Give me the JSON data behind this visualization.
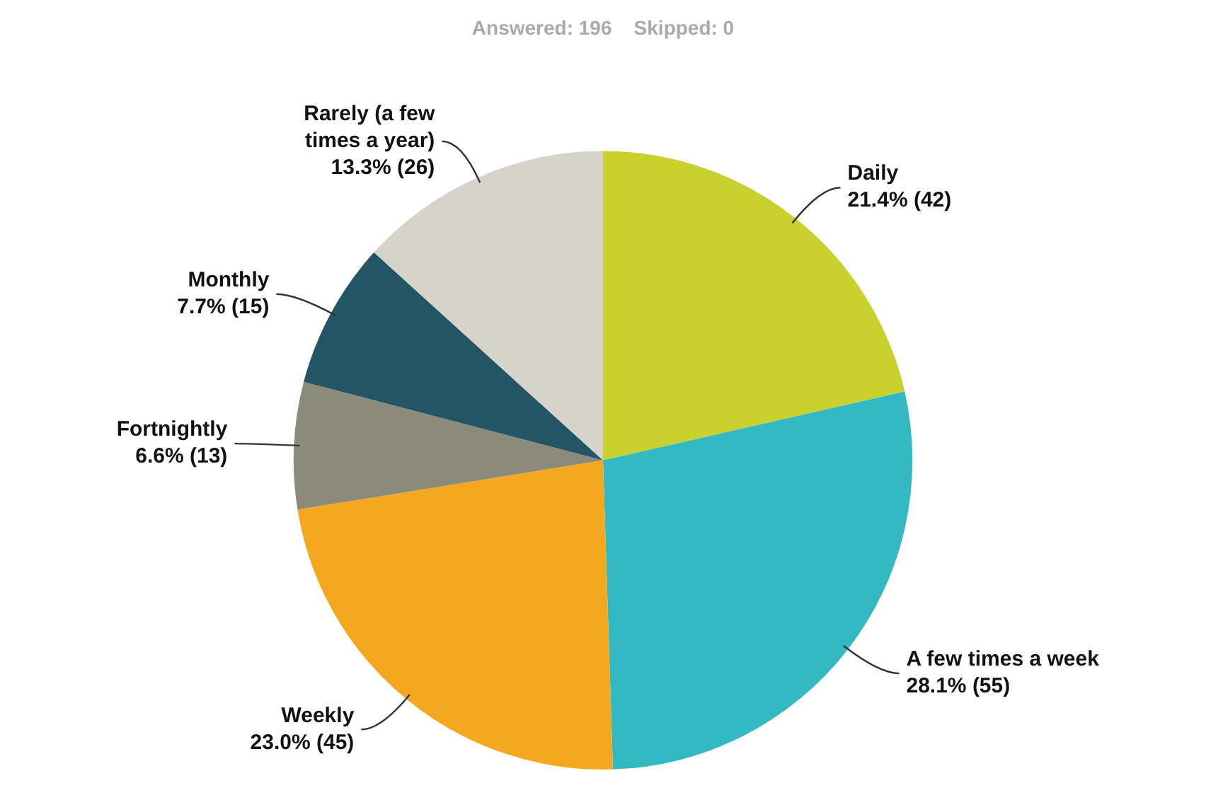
{
  "chart_data": {
    "type": "pie",
    "title": "Answered: 196    Skipped: 0",
    "categories": [
      "Daily",
      "A few times a week",
      "Weekly",
      "Fortnightly",
      "Monthly",
      "Rarely (a few times a year)"
    ],
    "values": [
      42,
      55,
      45,
      13,
      15,
      26
    ],
    "value_labels": [
      "21.4% (42)",
      "28.1% (55)",
      "23.0% (45)",
      "6.6% (13)",
      "7.7% (15)",
      "13.3% (26)"
    ],
    "colors": [
      "#c9d12e",
      "#33b9c1",
      "#f4a81d",
      "#8c8a7a",
      "#235566",
      "#d6d3c9"
    ],
    "legend": false
  }
}
